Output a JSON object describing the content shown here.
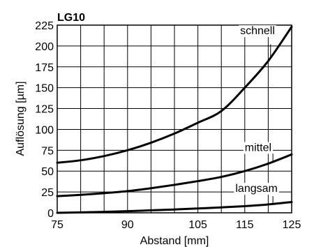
{
  "chart_data": {
    "type": "line",
    "title": "LG10",
    "xlabel": "Abstand [mm]",
    "ylabel": "Auflösung [µm]",
    "xlim": [
      75,
      125
    ],
    "ylim": [
      0,
      225
    ],
    "grid": true,
    "legend": "series labels drawn next to curves",
    "x_ticks": [
      75,
      90,
      105,
      115,
      125
    ],
    "y_ticks": [
      0,
      25,
      50,
      75,
      100,
      125,
      150,
      175,
      200,
      225
    ],
    "colors": {
      "line": "#000000",
      "grid": "#000000",
      "background": "#ffffff"
    },
    "series": [
      {
        "name": "schnell",
        "x": [
          75,
          80,
          85,
          90,
          95,
          100,
          105,
          110,
          115,
          120,
          125
        ],
        "y": [
          60,
          63,
          68,
          75,
          84,
          95,
          108,
          122,
          150,
          182,
          223
        ]
      },
      {
        "name": "mittel",
        "x": [
          75,
          80,
          85,
          90,
          95,
          100,
          105,
          110,
          115,
          120,
          125
        ],
        "y": [
          20,
          21.5,
          23.5,
          26,
          29.5,
          33.5,
          38,
          43,
          50,
          59,
          70
        ]
      },
      {
        "name": "langsam",
        "x": [
          75,
          80,
          85,
          90,
          95,
          100,
          105,
          110,
          115,
          120,
          125
        ],
        "y": [
          0,
          0.5,
          1.2,
          2,
          3,
          4,
          5.2,
          6.5,
          8,
          10,
          13
        ]
      }
    ]
  }
}
